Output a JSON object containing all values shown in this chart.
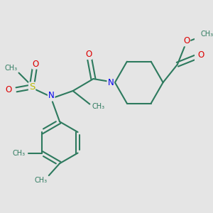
{
  "background_color": "#e5e5e5",
  "bond_color": "#2d7a5e",
  "N_color": "#0000ee",
  "O_color": "#dd0000",
  "S_color": "#bbbb00",
  "line_width": 1.5,
  "figsize": [
    3.0,
    3.0
  ],
  "dpi": 100,
  "xlim": [
    -3.5,
    4.5
  ],
  "ylim": [
    -4.5,
    3.5
  ]
}
